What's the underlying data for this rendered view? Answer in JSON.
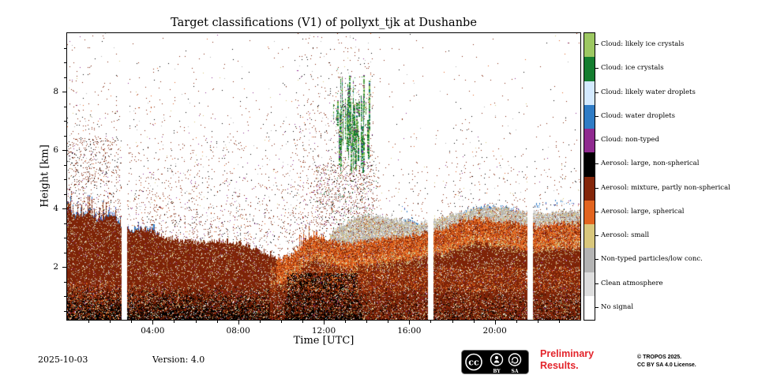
{
  "title": "Target classifications (V1) of pollyxt_tjk at Dushanbe",
  "footer": {
    "date": "2025-10-03",
    "version": "Version: 4.0",
    "preliminary_line1": "Preliminary",
    "preliminary_line2": "Results.",
    "preliminary_color": "#e3242b",
    "copyright_line1": "© TROPOS 2025.",
    "copyright_line2": "CC BY SA 4.0 License.",
    "cc_logo_text": "cc",
    "cc_by": "BY",
    "cc_sa": "SA"
  },
  "chart_data": {
    "type": "heatmap",
    "title": "Target classifications (V1) of pollyxt_tjk at Dushanbe",
    "xlabel": "Time [UTC]",
    "ylabel": "Height [km]",
    "xlim_hours": [
      0,
      24
    ],
    "ylim": [
      0.2,
      10.0
    ],
    "grid": false,
    "legend_position": "right-colorbar",
    "x_major_ticks": [
      {
        "hour": 4,
        "label": "04:00"
      },
      {
        "hour": 8,
        "label": "08:00"
      },
      {
        "hour": 12,
        "label": "12:00"
      },
      {
        "hour": 16,
        "label": "16:00"
      },
      {
        "hour": 20,
        "label": "20:00"
      }
    ],
    "x_minor_tick_every_hours": 1,
    "y_major_ticks": [
      2,
      4,
      6,
      8
    ],
    "y_minor_tick_every_km": 0.5,
    "classes": [
      {
        "key": "likely_ice",
        "label": "Cloud: likely ice crystals",
        "color": "#9dc862"
      },
      {
        "key": "ice",
        "label": "Cloud: ice crystals",
        "color": "#147d2f"
      },
      {
        "key": "likely_water",
        "label": "Cloud: likely water droplets",
        "color": "#d4eaff"
      },
      {
        "key": "water",
        "label": "Cloud: water droplets",
        "color": "#2f7cc5"
      },
      {
        "key": "cloud_nt",
        "label": "Cloud: non-typed",
        "color": "#8f2a8f"
      },
      {
        "key": "a_lns",
        "label": "Aerosol: large, non-spherical",
        "color": "#000000"
      },
      {
        "key": "a_mix",
        "label": "Aerosol: mixture, partly non-spherical",
        "color": "#84260a"
      },
      {
        "key": "a_ls",
        "label": "Aerosol: large, spherical",
        "color": "#e2641f"
      },
      {
        "key": "a_small",
        "label": "Aerosol: small",
        "color": "#d9c77c"
      },
      {
        "key": "nt_part",
        "label": "Non-typed particles/low conc.",
        "color": "#b4b4b4"
      },
      {
        "key": "clean",
        "label": "Clean atmosphere",
        "color": "#dedede"
      },
      {
        "key": "none",
        "label": "No signal",
        "color": "#ffffff"
      }
    ],
    "data_gaps_hours": [
      [
        2.58,
        2.78
      ],
      [
        16.9,
        17.1
      ],
      [
        21.55,
        21.75
      ]
    ],
    "aerosol_layer_top_km": {
      "hours": [
        0,
        0.5,
        1,
        1.5,
        2,
        2.5,
        3,
        3.5,
        4,
        4.5,
        5,
        6,
        7,
        8,
        9,
        9.5,
        10,
        10.5,
        11,
        11.5,
        12,
        12.5,
        13,
        14,
        15,
        16,
        17,
        18,
        18.5,
        19,
        20,
        21,
        22,
        23,
        24
      ],
      "height_km": [
        4.0,
        3.7,
        3.95,
        3.6,
        3.85,
        3.45,
        3.25,
        3.35,
        3.25,
        3.05,
        2.95,
        2.85,
        2.9,
        2.85,
        2.6,
        2.45,
        2.3,
        2.4,
        2.8,
        3.1,
        3.0,
        2.9,
        2.8,
        2.9,
        3.0,
        3.1,
        3.2,
        3.4,
        3.6,
        3.7,
        3.6,
        3.5,
        3.4,
        3.5,
        3.5
      ]
    },
    "gray_cap_top_km": {
      "hours": [
        12.3,
        12.5,
        13,
        13.5,
        14,
        14.5,
        15,
        15.5,
        16,
        16.5,
        17,
        17.5,
        18,
        19,
        19.5,
        20,
        20.5,
        21,
        21.5,
        22,
        22.5,
        23,
        24
      ],
      "height_km": [
        3.1,
        3.3,
        3.5,
        3.7,
        3.8,
        3.75,
        3.7,
        3.6,
        3.6,
        3.5,
        3.6,
        3.7,
        3.8,
        4.0,
        4.05,
        4.1,
        4.05,
        3.95,
        3.9,
        3.9,
        3.85,
        3.9,
        3.95
      ]
    },
    "cloud_event": {
      "start_hour": 12.35,
      "end_hour": 14.3,
      "base_km": 5.2,
      "top_km": 8.7,
      "classes": [
        "Cloud: ice crystals",
        "Cloud: likely ice crystals",
        "Cloud: non-typed"
      ]
    },
    "water_cloud_caps_hours": [
      [
        0,
        4.3
      ],
      [
        15.55,
        16.45
      ],
      [
        18.55,
        21.25
      ],
      [
        21.85,
        23.95
      ]
    ],
    "surface_black_layer_top_km": 1.4
  }
}
